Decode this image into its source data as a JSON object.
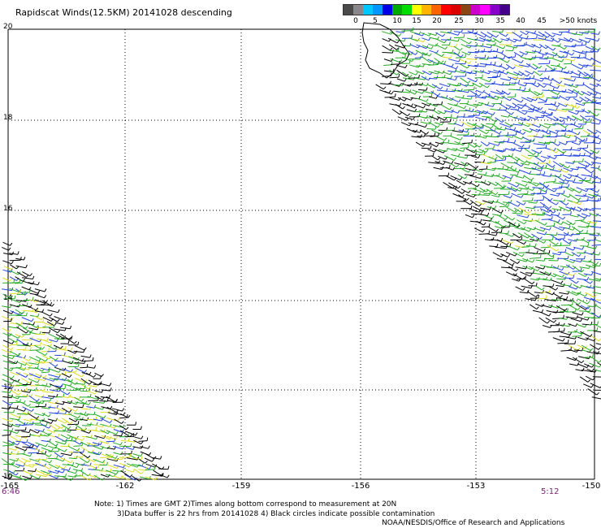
{
  "title": "Rapidscat Winds(12.5KM) 20141028 descending",
  "y_ticks": [
    "20",
    "18",
    "16",
    "14",
    "12",
    "10"
  ],
  "x_ticks": [
    "-165",
    "-162",
    "-159",
    "-156",
    "-153",
    "-150"
  ],
  "time_left": "6:46",
  "time_right": "5:12",
  "legend": {
    "labels": [
      "0",
      "5",
      "10",
      "15",
      "20",
      "25",
      "30",
      "35",
      "40",
      "45",
      ">50 knots"
    ],
    "colors": [
      "#4a4a4a",
      "#888888",
      "#00c8ff",
      "#0096ff",
      "#0000e6",
      "#00aa00",
      "#00dd00",
      "#ffff00",
      "#ffb400",
      "#ff6400",
      "#ff0000",
      "#dd0000",
      "#8b4513",
      "#cc00cc",
      "#ff00ff",
      "#8800cc",
      "#440088"
    ]
  },
  "notes": {
    "line1": "Note: 1) Times are GMT 2)Times along bottom correspond to measurement at 20N",
    "line2": "3)Data buffer is 22 hrs from 20141028 4) Black circles indicate possible contamination",
    "line3": "NOAA/NESDIS/Office of Research and Applications"
  }
}
